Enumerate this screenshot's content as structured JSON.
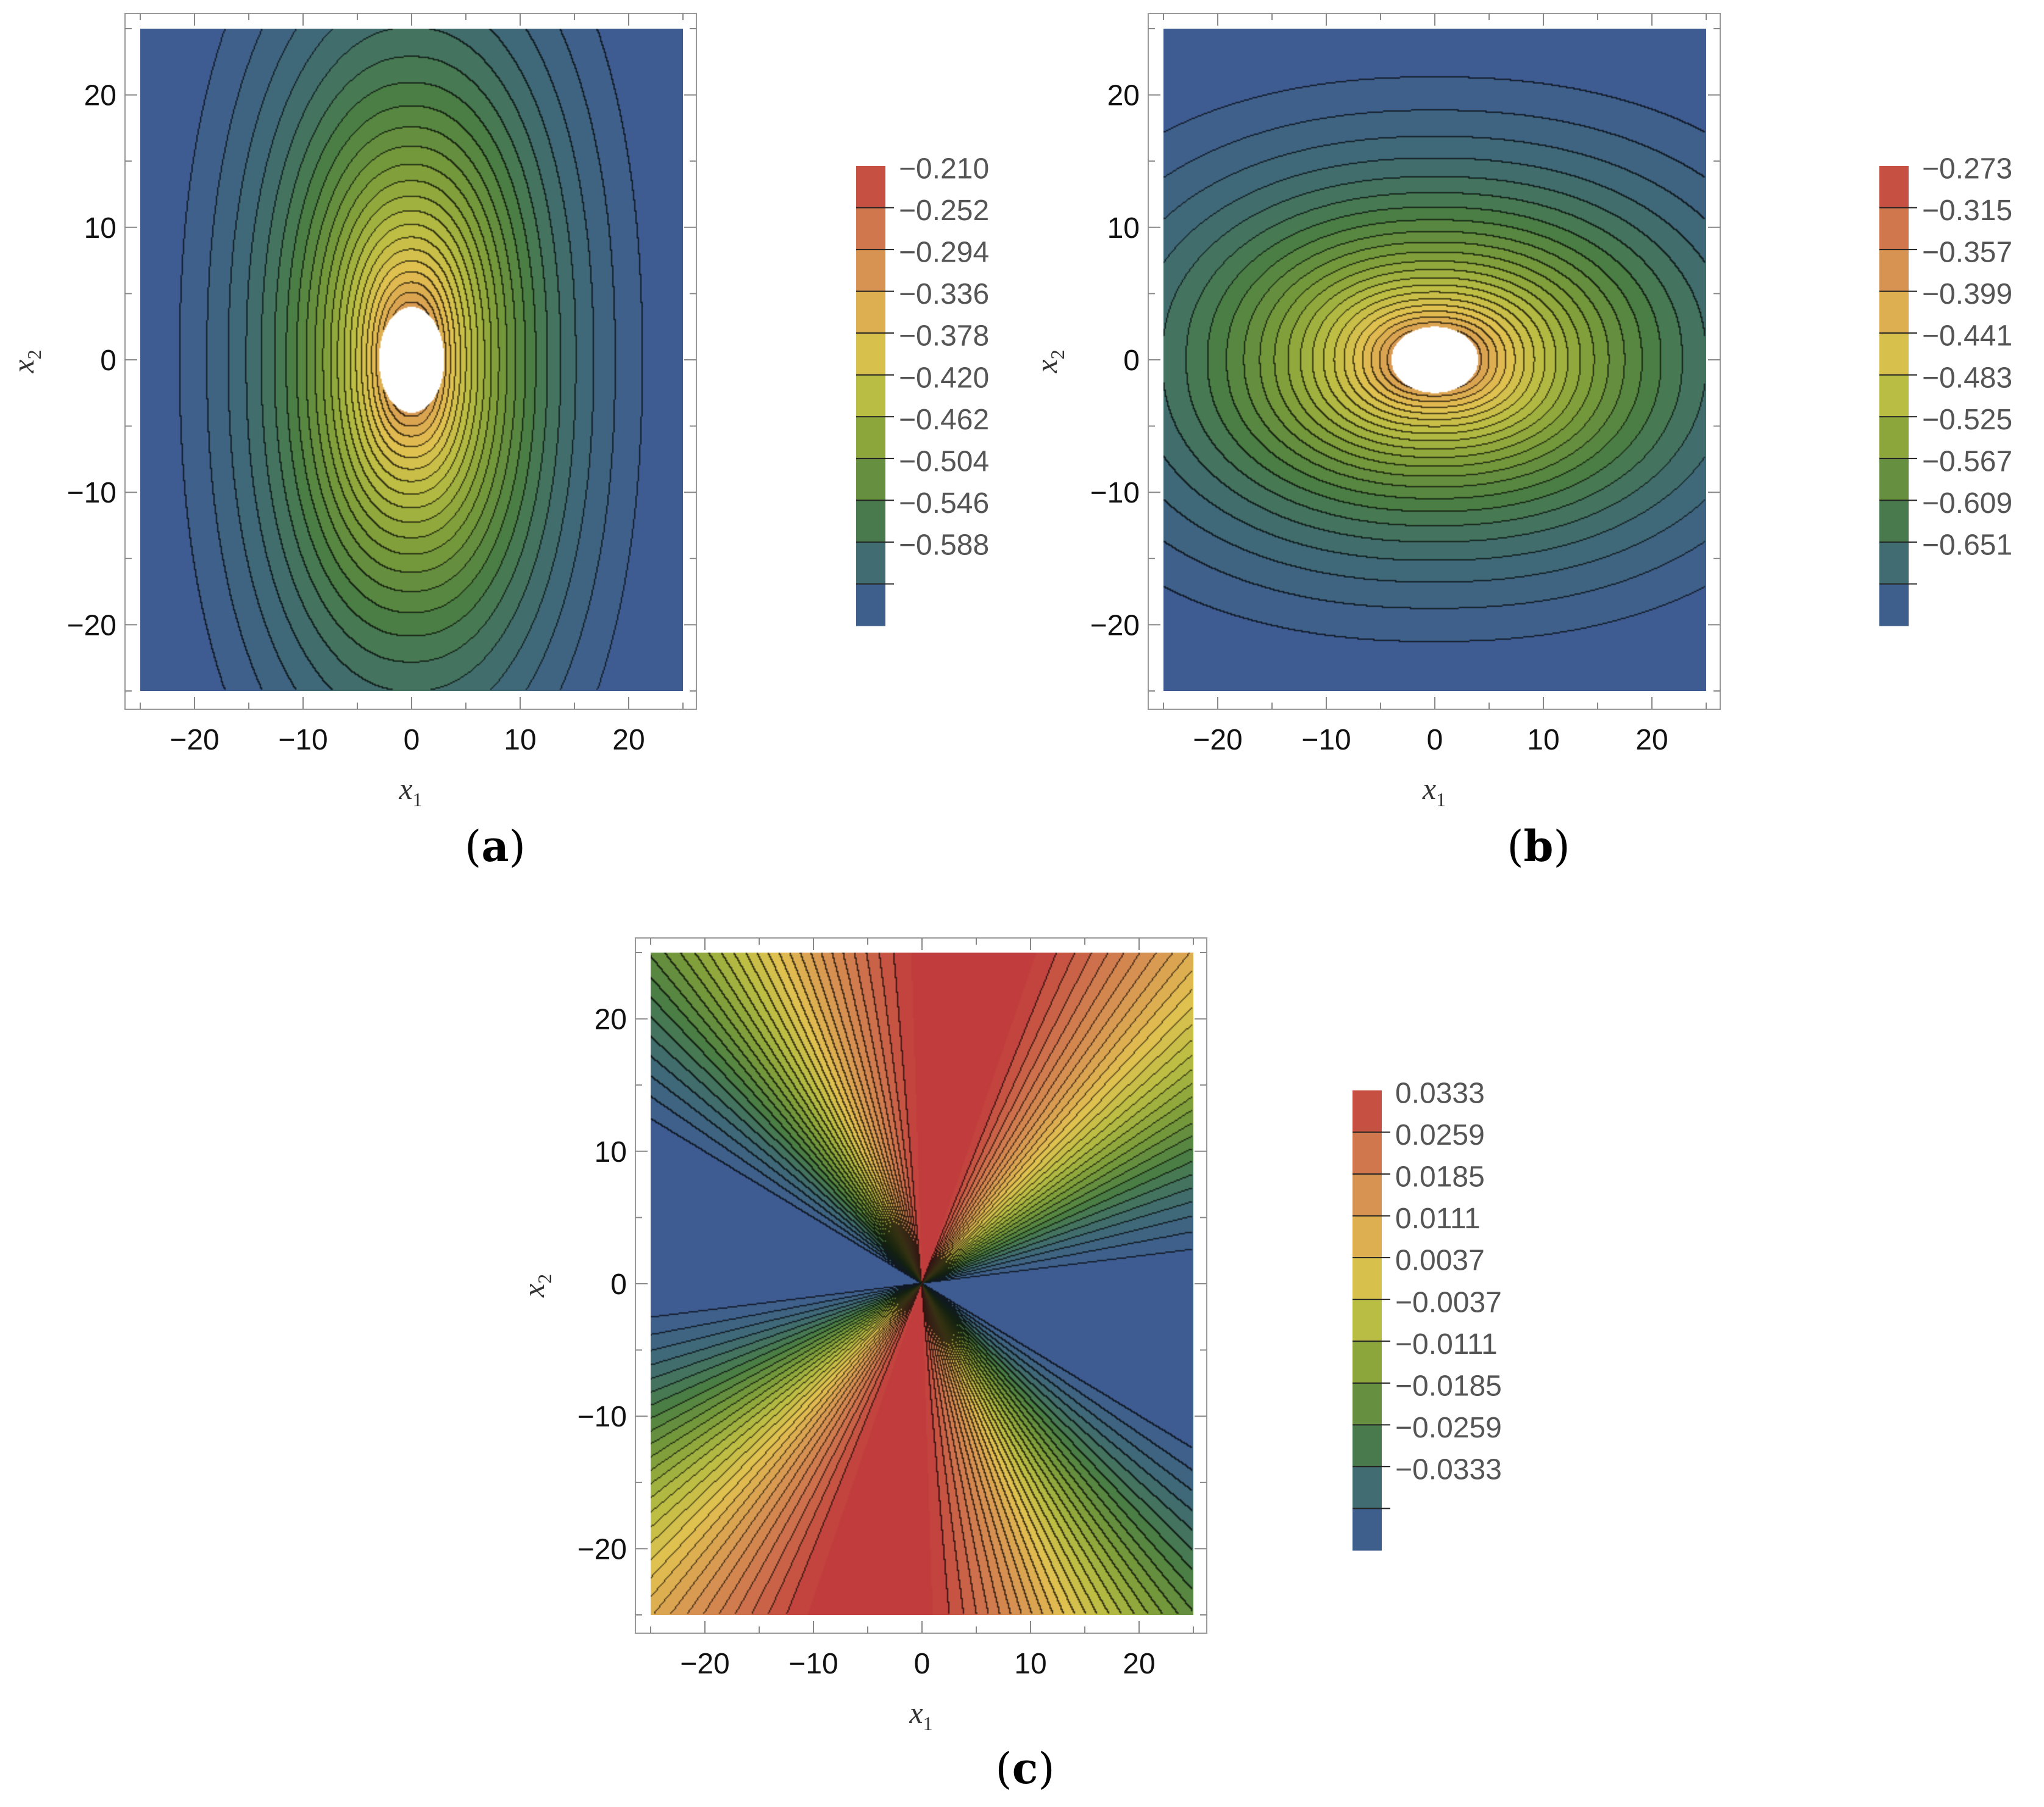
{
  "chart_data": [
    {
      "type": "heatmap",
      "subtype": "contour",
      "panel_label": "(a)",
      "xlabel": "x",
      "xlabel_sub": "1",
      "ylabel": "x",
      "ylabel_sub": "2",
      "xlim": [
        -25,
        25
      ],
      "ylim": [
        -25,
        25
      ],
      "xticks": [
        -20,
        -10,
        0,
        10,
        20
      ],
      "yticks": [
        -20,
        -10,
        0,
        10,
        20
      ],
      "x_tick_labels": [
        "−20",
        "−10",
        "0",
        "10",
        "20"
      ],
      "y_tick_labels": [
        "−20",
        "−10",
        "0",
        "10",
        "20"
      ],
      "pattern": "oval-vertical",
      "hole": {
        "semi_axis_x": 3,
        "semi_axis_y": 4
      },
      "contour_lines": true,
      "color_scheme": [
        "#3e5996",
        "#3f6a77",
        "#4a7e44",
        "#7d9e3a",
        "#b9bd43",
        "#e2c150",
        "#d99a52",
        "#cf744d",
        "#c13d3d"
      ],
      "legend": {
        "placement": "right",
        "levels": [
          -0.21,
          -0.252,
          -0.294,
          -0.336,
          -0.378,
          -0.42,
          -0.462,
          -0.504,
          -0.546,
          -0.588
        ],
        "labels": [
          "−0.210",
          "−0.252",
          "−0.294",
          "−0.336",
          "−0.378",
          "−0.420",
          "−0.462",
          "−0.504",
          "−0.546",
          "−0.588"
        ]
      }
    },
    {
      "type": "heatmap",
      "subtype": "contour",
      "panel_label": "(b)",
      "xlabel": "x",
      "xlabel_sub": "1",
      "ylabel": "x",
      "ylabel_sub": "2",
      "xlim": [
        -25,
        25
      ],
      "ylim": [
        -25,
        25
      ],
      "xticks": [
        -20,
        -10,
        0,
        10,
        20
      ],
      "yticks": [
        -20,
        -10,
        0,
        10,
        20
      ],
      "x_tick_labels": [
        "−20",
        "−10",
        "0",
        "10",
        "20"
      ],
      "y_tick_labels": [
        "−20",
        "−10",
        "0",
        "10",
        "20"
      ],
      "pattern": "oval-horizontal",
      "hole": {
        "semi_axis_x": 4,
        "semi_axis_y": 2.5
      },
      "contour_lines": true,
      "color_scheme": [
        "#3e5996",
        "#3f6a77",
        "#4a7e44",
        "#7d9e3a",
        "#b9bd43",
        "#e2c150",
        "#d99a52",
        "#cf744d",
        "#c13d3d"
      ],
      "legend": {
        "placement": "right",
        "levels": [
          -0.273,
          -0.315,
          -0.357,
          -0.399,
          -0.441,
          -0.483,
          -0.525,
          -0.567,
          -0.609,
          -0.651
        ],
        "labels": [
          "−0.273",
          "−0.315",
          "−0.357",
          "−0.399",
          "−0.441",
          "−0.483",
          "−0.525",
          "−0.567",
          "−0.609",
          "−0.651"
        ]
      }
    },
    {
      "type": "heatmap",
      "subtype": "contour",
      "panel_label": "(c)",
      "xlabel": "x",
      "xlabel_sub": "1",
      "ylabel": "x",
      "ylabel_sub": "2",
      "xlim": [
        -25,
        25
      ],
      "ylim": [
        -25,
        25
      ],
      "xticks": [
        -20,
        -10,
        0,
        10,
        20
      ],
      "yticks": [
        -20,
        -10,
        0,
        10,
        20
      ],
      "x_tick_labels": [
        "−20",
        "−10",
        "0",
        "10",
        "20"
      ],
      "y_tick_labels": [
        "−20",
        "−10",
        "0",
        "10",
        "20"
      ],
      "pattern": "angular",
      "contour_lines": true,
      "color_scheme": [
        "#3e5996",
        "#3f6a77",
        "#4a7e44",
        "#7d9e3a",
        "#b9bd43",
        "#e2c150",
        "#d99a52",
        "#cf744d",
        "#c13d3d"
      ],
      "legend": {
        "placement": "right",
        "levels": [
          0.0333,
          0.0259,
          0.0185,
          0.0111,
          0.0037,
          -0.0037,
          -0.0111,
          -0.0185,
          -0.0259,
          -0.0333
        ],
        "labels": [
          "0.0333",
          "0.0259",
          "0.0185",
          "0.0111",
          "0.0037",
          "−0.0037",
          "−0.0111",
          "−0.0185",
          "−0.0259",
          "−0.0333"
        ]
      }
    }
  ]
}
